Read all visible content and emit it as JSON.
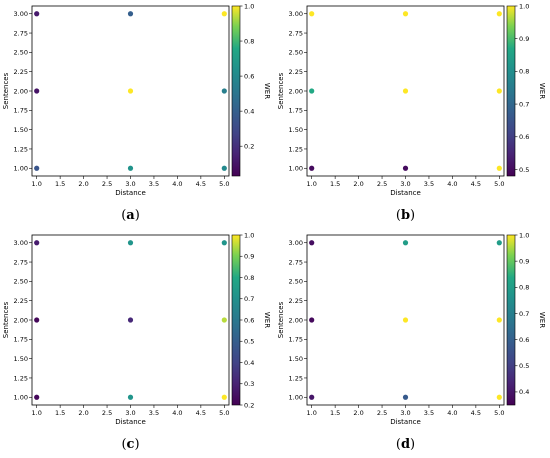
{
  "chart_data": [
    {
      "type": "scatter",
      "panel_label": "(a)",
      "xlabel": "Distance",
      "ylabel": "Sentences",
      "colorbar_label": "WER",
      "colormap": "viridis",
      "xlim": [
        0.9,
        5.1
      ],
      "ylim": [
        0.9,
        3.1
      ],
      "xticks": [
        "1.0",
        "1.5",
        "2.0",
        "2.5",
        "3.0",
        "3.5",
        "4.0",
        "4.5",
        "5.0"
      ],
      "yticks": [
        "1.00",
        "1.25",
        "1.50",
        "1.75",
        "2.00",
        "2.25",
        "2.50",
        "2.75",
        "3.00"
      ],
      "cbar_range": [
        0.03,
        1.0
      ],
      "cbar_ticks": [
        "0.2",
        "0.4",
        "0.6",
        "0.8",
        "1.0"
      ],
      "points": [
        {
          "x": 1,
          "y": 1,
          "v": 0.35
        },
        {
          "x": 1,
          "y": 2,
          "v": 0.1
        },
        {
          "x": 1,
          "y": 3,
          "v": 0.12
        },
        {
          "x": 3,
          "y": 1,
          "v": 0.65
        },
        {
          "x": 3,
          "y": 2,
          "v": 1.0
        },
        {
          "x": 3,
          "y": 3,
          "v": 0.4
        },
        {
          "x": 5,
          "y": 1,
          "v": 0.6
        },
        {
          "x": 5,
          "y": 2,
          "v": 0.55
        },
        {
          "x": 5,
          "y": 3,
          "v": 1.0
        }
      ]
    },
    {
      "type": "scatter",
      "panel_label": "(b)",
      "xlabel": "Distance",
      "ylabel": "Sentences",
      "colorbar_label": "WER",
      "colormap": "viridis",
      "xlim": [
        0.9,
        5.1
      ],
      "ylim": [
        0.9,
        3.1
      ],
      "xticks": [
        "1.0",
        "1.5",
        "2.0",
        "2.5",
        "3.0",
        "3.5",
        "4.0",
        "4.5",
        "5.0"
      ],
      "yticks": [
        "1.00",
        "1.25",
        "1.50",
        "1.75",
        "2.00",
        "2.25",
        "2.50",
        "2.75",
        "3.00"
      ],
      "cbar_range": [
        0.48,
        1.0
      ],
      "cbar_ticks": [
        "0.5",
        "0.6",
        "0.7",
        "0.8",
        "0.9",
        "1.0"
      ],
      "points": [
        {
          "x": 1,
          "y": 1,
          "v": 0.5
        },
        {
          "x": 1,
          "y": 2,
          "v": 0.87
        },
        {
          "x": 1,
          "y": 3,
          "v": 1.0
        },
        {
          "x": 3,
          "y": 1,
          "v": 0.5
        },
        {
          "x": 3,
          "y": 2,
          "v": 1.0
        },
        {
          "x": 3,
          "y": 3,
          "v": 1.0
        },
        {
          "x": 5,
          "y": 1,
          "v": 1.0
        },
        {
          "x": 5,
          "y": 2,
          "v": 1.0
        },
        {
          "x": 5,
          "y": 3,
          "v": 1.0
        }
      ]
    },
    {
      "type": "scatter",
      "panel_label": "(c)",
      "xlabel": "Distance",
      "ylabel": "Sentences",
      "colorbar_label": "WER",
      "colormap": "viridis",
      "xlim": [
        0.9,
        5.1
      ],
      "ylim": [
        0.9,
        3.1
      ],
      "xticks": [
        "1.0",
        "1.5",
        "2.0",
        "2.5",
        "3.0",
        "3.5",
        "4.0",
        "4.5",
        "5.0"
      ],
      "yticks": [
        "1.00",
        "1.25",
        "1.50",
        "1.75",
        "2.00",
        "2.25",
        "2.50",
        "2.75",
        "3.00"
      ],
      "cbar_range": [
        0.2,
        1.0
      ],
      "cbar_ticks": [
        "0.2",
        "0.3",
        "0.4",
        "0.5",
        "0.6",
        "0.7",
        "0.8",
        "0.9",
        "1.0"
      ],
      "points": [
        {
          "x": 1,
          "y": 1,
          "v": 0.22
        },
        {
          "x": 1,
          "y": 2,
          "v": 0.22
        },
        {
          "x": 1,
          "y": 3,
          "v": 0.28
        },
        {
          "x": 3,
          "y": 1,
          "v": 0.72
        },
        {
          "x": 3,
          "y": 2,
          "v": 0.32
        },
        {
          "x": 3,
          "y": 3,
          "v": 0.72
        },
        {
          "x": 5,
          "y": 1,
          "v": 1.0
        },
        {
          "x": 5,
          "y": 2,
          "v": 0.95
        },
        {
          "x": 5,
          "y": 3,
          "v": 0.72
        }
      ]
    },
    {
      "type": "scatter",
      "panel_label": "(d)",
      "xlabel": "Distance",
      "ylabel": "Sentences",
      "colorbar_label": "WER",
      "colormap": "viridis",
      "xlim": [
        0.9,
        5.1
      ],
      "ylim": [
        0.9,
        3.1
      ],
      "xticks": [
        "1.0",
        "1.5",
        "2.0",
        "2.5",
        "3.0",
        "3.5",
        "4.0",
        "4.5",
        "5.0"
      ],
      "yticks": [
        "1.00",
        "1.25",
        "1.50",
        "1.75",
        "2.00",
        "2.25",
        "2.50",
        "2.75",
        "3.00"
      ],
      "cbar_range": [
        0.35,
        1.0
      ],
      "cbar_ticks": [
        "0.4",
        "0.5",
        "0.6",
        "0.7",
        "0.8",
        "0.9",
        "1.0"
      ],
      "points": [
        {
          "x": 1,
          "y": 1,
          "v": 0.4
        },
        {
          "x": 1,
          "y": 2,
          "v": 0.37
        },
        {
          "x": 1,
          "y": 3,
          "v": 0.38
        },
        {
          "x": 3,
          "y": 1,
          "v": 0.58
        },
        {
          "x": 3,
          "y": 2,
          "v": 1.0
        },
        {
          "x": 3,
          "y": 3,
          "v": 0.8
        },
        {
          "x": 5,
          "y": 1,
          "v": 1.0
        },
        {
          "x": 5,
          "y": 2,
          "v": 1.0
        },
        {
          "x": 5,
          "y": 3,
          "v": 0.8
        }
      ]
    }
  ]
}
